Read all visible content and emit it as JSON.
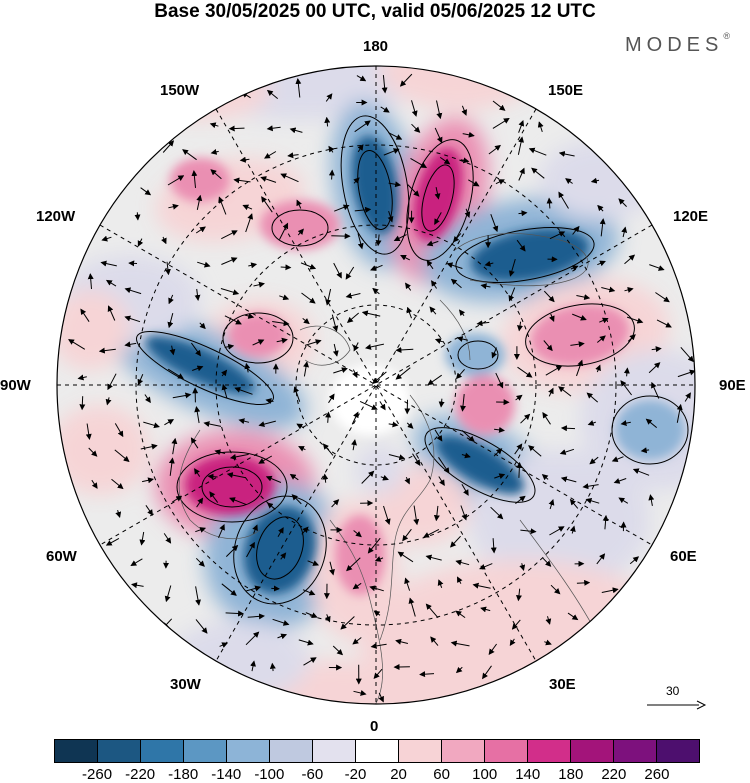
{
  "title": "Base 30/05/2025 00 UTC, valid 05/06/2025 12 UTC",
  "brand": "MODES",
  "brand_mark": "®",
  "map": {
    "projection": "north-polar-stereographic",
    "labels": {
      "top": "180",
      "bottom": "0",
      "left": "90W",
      "right": "90E",
      "upper_left_1": "150W",
      "upper_left_2": "120W",
      "lower_left_1": "60W",
      "lower_left_2": "30W",
      "upper_right_1": "150E",
      "upper_right_2": "120E",
      "lower_right_1": "60E",
      "lower_right_2": "30E"
    },
    "vector_scale": "30",
    "colors": {
      "negative_strong": "#1f5d8f",
      "negative_mid": "#8fb4d6",
      "negative_weak": "#dcdbea",
      "neutral": "#ececec",
      "positive_weak": "#f6d4d6",
      "positive_mid": "#ea8fb2",
      "positive_strong": "#c9217f"
    }
  },
  "colorbar": {
    "ticks": [
      "-260",
      "-220",
      "-180",
      "-140",
      "-100",
      "-60",
      "-20",
      "20",
      "60",
      "100",
      "140",
      "180",
      "220",
      "260"
    ],
    "colors": [
      "#0f3553",
      "#1c5782",
      "#2f76a8",
      "#5c97c3",
      "#8db4d7",
      "#bfc9e0",
      "#e3e1ee",
      "#ffffff",
      "#f7d3d6",
      "#f1a8c0",
      "#e670a4",
      "#d22e8a",
      "#a3147a",
      "#7d117d",
      "#4d0f6e"
    ]
  }
}
